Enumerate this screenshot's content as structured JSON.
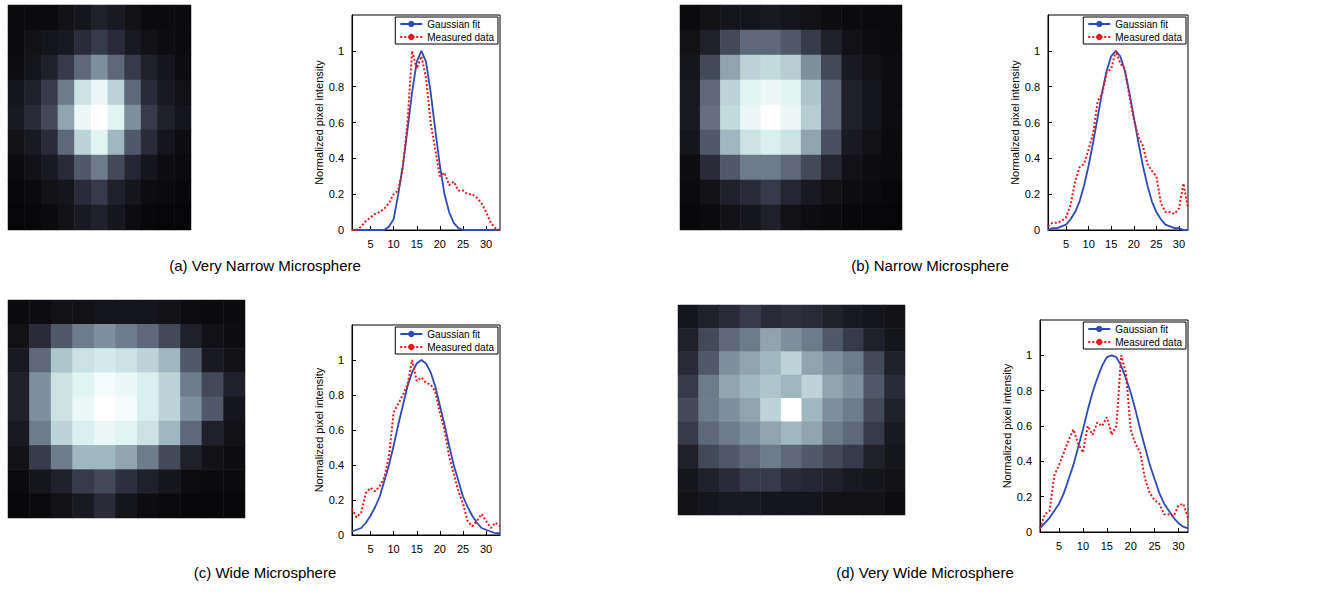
{
  "chart_data": [
    {
      "type": "line",
      "title": "(a) Very Narrow Microsphere",
      "ylabel": "Normalized pixel intensity",
      "x": [
        1,
        2,
        3,
        4,
        5,
        6,
        7,
        8,
        9,
        10,
        11,
        12,
        13,
        14,
        15,
        16,
        17,
        18,
        19,
        20,
        21,
        22,
        23,
        24,
        25,
        26,
        27,
        28,
        29,
        30,
        31,
        32,
        33
      ],
      "series": [
        {
          "name": "Gaussian fit",
          "color": "#2e4bb5",
          "line_style": "solid",
          "values": [
            0,
            0,
            0,
            0,
            0,
            0,
            0,
            0,
            0.02,
            0.06,
            0.2,
            0.36,
            0.56,
            0.77,
            0.94,
            1.0,
            0.94,
            0.77,
            0.56,
            0.36,
            0.2,
            0.1,
            0.04,
            0.01,
            0,
            0,
            0,
            0,
            0,
            0,
            0,
            0,
            0
          ]
        },
        {
          "name": "Measured data",
          "color": "#e41a1c",
          "line_style": "dotted",
          "values": [
            0,
            0,
            0.02,
            0.05,
            0.07,
            0.09,
            0.1,
            0.12,
            0.15,
            0.2,
            0.22,
            0.35,
            0.6,
            1.0,
            0.9,
            0.97,
            0.85,
            0.6,
            0.45,
            0.3,
            0.32,
            0.25,
            0.27,
            0.22,
            0.22,
            0.2,
            0.2,
            0.18,
            0.15,
            0.1,
            0.04,
            0.01,
            0
          ]
        }
      ],
      "xlim": [
        1,
        33
      ],
      "xticks": [
        5,
        10,
        15,
        20,
        25,
        30
      ],
      "ylim": [
        0,
        1.2
      ],
      "yticks": [
        0,
        0.2,
        0.4,
        0.6,
        0.8,
        1
      ],
      "grid": false,
      "legend": "upper right",
      "image": {
        "clim": [
          0,
          1
        ],
        "cells": [
          [
            0.05,
            0.05,
            0.05,
            0.08,
            0.1,
            0.15,
            0.12,
            0.08,
            0.05,
            0.05,
            0.05
          ],
          [
            0.05,
            0.08,
            0.1,
            0.12,
            0.2,
            0.25,
            0.2,
            0.12,
            0.08,
            0.06,
            0.05
          ],
          [
            0.06,
            0.1,
            0.15,
            0.25,
            0.4,
            0.5,
            0.4,
            0.25,
            0.15,
            0.1,
            0.06
          ],
          [
            0.1,
            0.15,
            0.25,
            0.45,
            0.75,
            0.9,
            0.7,
            0.4,
            0.2,
            0.12,
            0.08
          ],
          [
            0.12,
            0.2,
            0.3,
            0.55,
            0.9,
            1.0,
            0.85,
            0.5,
            0.25,
            0.15,
            0.1
          ],
          [
            0.08,
            0.12,
            0.2,
            0.4,
            0.7,
            0.85,
            0.6,
            0.35,
            0.2,
            0.1,
            0.06
          ],
          [
            0.05,
            0.08,
            0.12,
            0.2,
            0.35,
            0.45,
            0.3,
            0.18,
            0.1,
            0.06,
            0.05
          ],
          [
            0.04,
            0.05,
            0.08,
            0.1,
            0.2,
            0.25,
            0.15,
            0.1,
            0.06,
            0.05,
            0.04
          ],
          [
            0.03,
            0.04,
            0.05,
            0.08,
            0.12,
            0.15,
            0.1,
            0.06,
            0.04,
            0.03,
            0.03
          ]
        ]
      }
    },
    {
      "type": "line",
      "title": "(b) Narrow Microsphere",
      "ylabel": "Normalized pixel intensity",
      "x": [
        1,
        2,
        3,
        4,
        5,
        6,
        7,
        8,
        9,
        10,
        11,
        12,
        13,
        14,
        15,
        16,
        17,
        18,
        19,
        20,
        21,
        22,
        23,
        24,
        25,
        26,
        27,
        28,
        29,
        30,
        31,
        32
      ],
      "series": [
        {
          "name": "Gaussian fit",
          "color": "#2e4bb5",
          "line_style": "solid",
          "values": [
            0,
            0.01,
            0.01,
            0.02,
            0.03,
            0.06,
            0.1,
            0.16,
            0.25,
            0.36,
            0.49,
            0.63,
            0.77,
            0.89,
            0.97,
            1.0,
            0.97,
            0.89,
            0.77,
            0.63,
            0.49,
            0.36,
            0.25,
            0.16,
            0.1,
            0.06,
            0.03,
            0.02,
            0.01,
            0.01,
            0,
            0
          ]
        },
        {
          "name": "Measured data",
          "color": "#e41a1c",
          "line_style": "dotted",
          "values": [
            0.02,
            0.04,
            0.04,
            0.05,
            0.07,
            0.14,
            0.27,
            0.35,
            0.37,
            0.45,
            0.54,
            0.72,
            0.76,
            0.88,
            0.9,
            1.0,
            0.93,
            0.9,
            0.75,
            0.62,
            0.52,
            0.47,
            0.37,
            0.33,
            0.3,
            0.15,
            0.1,
            0.1,
            0.09,
            0.12,
            0.26,
            0.12
          ]
        }
      ],
      "xlim": [
        1,
        32
      ],
      "xticks": [
        5,
        10,
        15,
        20,
        25,
        30
      ],
      "ylim": [
        0,
        1.2
      ],
      "yticks": [
        0,
        0.2,
        0.4,
        0.6,
        0.8,
        1
      ],
      "grid": false,
      "legend": "upper right",
      "image": {
        "clim": [
          0,
          1
        ],
        "cells": [
          [
            0.05,
            0.08,
            0.1,
            0.1,
            0.12,
            0.1,
            0.08,
            0.06,
            0.05,
            0.05,
            0.05
          ],
          [
            0.08,
            0.15,
            0.3,
            0.4,
            0.4,
            0.35,
            0.25,
            0.15,
            0.08,
            0.06,
            0.05
          ],
          [
            0.1,
            0.3,
            0.55,
            0.7,
            0.72,
            0.68,
            0.5,
            0.3,
            0.12,
            0.08,
            0.06
          ],
          [
            0.12,
            0.4,
            0.7,
            0.85,
            0.9,
            0.85,
            0.65,
            0.4,
            0.15,
            0.1,
            0.06
          ],
          [
            0.12,
            0.42,
            0.72,
            0.9,
            1.0,
            0.9,
            0.68,
            0.4,
            0.15,
            0.1,
            0.06
          ],
          [
            0.1,
            0.35,
            0.6,
            0.75,
            0.8,
            0.75,
            0.55,
            0.32,
            0.12,
            0.08,
            0.05
          ],
          [
            0.06,
            0.2,
            0.35,
            0.45,
            0.45,
            0.4,
            0.3,
            0.18,
            0.08,
            0.06,
            0.05
          ],
          [
            0.05,
            0.08,
            0.15,
            0.2,
            0.25,
            0.18,
            0.12,
            0.08,
            0.06,
            0.05,
            0.04
          ],
          [
            0.04,
            0.05,
            0.08,
            0.1,
            0.15,
            0.08,
            0.06,
            0.05,
            0.04,
            0.04,
            0.03
          ]
        ]
      }
    },
    {
      "type": "line",
      "title": "(c) Wide Microsphere",
      "ylabel": "Normalized pixel intensity",
      "x": [
        1,
        2,
        3,
        4,
        5,
        6,
        7,
        8,
        9,
        10,
        11,
        12,
        13,
        14,
        15,
        16,
        17,
        18,
        19,
        20,
        21,
        22,
        23,
        24,
        25,
        26,
        27,
        28,
        29,
        30,
        31,
        32,
        33
      ],
      "series": [
        {
          "name": "Gaussian fit",
          "color": "#2e4bb5",
          "line_style": "solid",
          "values": [
            0.02,
            0.03,
            0.04,
            0.07,
            0.11,
            0.16,
            0.22,
            0.31,
            0.4,
            0.51,
            0.63,
            0.74,
            0.85,
            0.93,
            0.98,
            1.0,
            0.98,
            0.93,
            0.85,
            0.74,
            0.63,
            0.51,
            0.4,
            0.31,
            0.22,
            0.16,
            0.11,
            0.07,
            0.04,
            0.03,
            0.02,
            0.01,
            0.01
          ]
        },
        {
          "name": "Measured data",
          "color": "#e41a1c",
          "line_style": "dotted",
          "values": [
            0.15,
            0.1,
            0.13,
            0.24,
            0.27,
            0.25,
            0.28,
            0.33,
            0.45,
            0.7,
            0.75,
            0.8,
            0.86,
            1.0,
            0.88,
            0.9,
            0.87,
            0.86,
            0.82,
            0.7,
            0.6,
            0.45,
            0.35,
            0.25,
            0.18,
            0.08,
            0.05,
            0.08,
            0.12,
            0.08,
            0.04,
            0.07,
            0.05
          ]
        }
      ],
      "xlim": [
        1,
        33
      ],
      "xticks": [
        5,
        10,
        15,
        20,
        25,
        30
      ],
      "ylim": [
        0,
        1.2
      ],
      "yticks": [
        0,
        0.2,
        0.4,
        0.6,
        0.8,
        1
      ],
      "grid": false,
      "legend": "upper right",
      "image": {
        "clim": [
          0,
          1
        ],
        "cells": [
          [
            0.05,
            0.06,
            0.08,
            0.08,
            0.1,
            0.1,
            0.1,
            0.08,
            0.06,
            0.05,
            0.05
          ],
          [
            0.08,
            0.2,
            0.35,
            0.45,
            0.5,
            0.45,
            0.4,
            0.3,
            0.15,
            0.08,
            0.06
          ],
          [
            0.12,
            0.4,
            0.65,
            0.75,
            0.78,
            0.75,
            0.7,
            0.6,
            0.35,
            0.12,
            0.08
          ],
          [
            0.15,
            0.5,
            0.75,
            0.85,
            0.95,
            0.9,
            0.8,
            0.7,
            0.45,
            0.3,
            0.15
          ],
          [
            0.15,
            0.5,
            0.75,
            0.9,
            1.0,
            0.95,
            0.8,
            0.7,
            0.5,
            0.35,
            0.1
          ],
          [
            0.12,
            0.45,
            0.7,
            0.8,
            0.9,
            0.85,
            0.75,
            0.6,
            0.4,
            0.15,
            0.08
          ],
          [
            0.08,
            0.25,
            0.45,
            0.6,
            0.6,
            0.55,
            0.45,
            0.3,
            0.15,
            0.08,
            0.06
          ],
          [
            0.05,
            0.1,
            0.15,
            0.25,
            0.3,
            0.22,
            0.15,
            0.1,
            0.06,
            0.05,
            0.05
          ],
          [
            0.04,
            0.05,
            0.08,
            0.12,
            0.2,
            0.1,
            0.06,
            0.05,
            0.04,
            0.04,
            0.04
          ]
        ]
      }
    },
    {
      "type": "line",
      "title": "(d) Very Wide Microsphere",
      "ylabel": "Normalized pixel intensity",
      "x": [
        1,
        2,
        3,
        4,
        5,
        6,
        7,
        8,
        9,
        10,
        11,
        12,
        13,
        14,
        15,
        16,
        17,
        18,
        19,
        20,
        21,
        22,
        23,
        24,
        25,
        26,
        27,
        28,
        29,
        30,
        31,
        32
      ],
      "series": [
        {
          "name": "Gaussian fit",
          "color": "#2e4bb5",
          "line_style": "solid",
          "values": [
            0.02,
            0.05,
            0.08,
            0.12,
            0.16,
            0.22,
            0.3,
            0.38,
            0.48,
            0.58,
            0.69,
            0.79,
            0.87,
            0.94,
            0.99,
            1.0,
            0.99,
            0.94,
            0.87,
            0.79,
            0.69,
            0.58,
            0.48,
            0.38,
            0.3,
            0.22,
            0.16,
            0.12,
            0.08,
            0.05,
            0.03,
            0.02
          ]
        },
        {
          "name": "Measured data",
          "color": "#e41a1c",
          "line_style": "dotted",
          "values": [
            0.02,
            0.1,
            0.12,
            0.32,
            0.38,
            0.45,
            0.52,
            0.58,
            0.5,
            0.45,
            0.6,
            0.55,
            0.62,
            0.6,
            0.65,
            0.55,
            0.6,
            1.0,
            0.9,
            0.58,
            0.5,
            0.45,
            0.3,
            0.22,
            0.18,
            0.16,
            0.1,
            0.1,
            0.09,
            0.15,
            0.16,
            0.08
          ]
        }
      ],
      "xlim": [
        1,
        32
      ],
      "xticks": [
        5,
        10,
        15,
        20,
        25,
        30
      ],
      "ylim": [
        0,
        1.2
      ],
      "yticks": [
        0,
        0.2,
        0.4,
        0.6,
        0.8,
        1
      ],
      "grid": false,
      "legend": "upper right",
      "image": {
        "clim": [
          0,
          1
        ],
        "cells": [
          [
            0.1,
            0.15,
            0.2,
            0.25,
            0.2,
            0.22,
            0.2,
            0.15,
            0.12,
            0.1,
            0.08
          ],
          [
            0.15,
            0.3,
            0.4,
            0.45,
            0.55,
            0.5,
            0.45,
            0.35,
            0.25,
            0.15,
            0.1
          ],
          [
            0.2,
            0.35,
            0.5,
            0.55,
            0.6,
            0.7,
            0.55,
            0.5,
            0.45,
            0.3,
            0.15
          ],
          [
            0.25,
            0.45,
            0.55,
            0.6,
            0.65,
            0.6,
            0.7,
            0.55,
            0.5,
            0.35,
            0.2
          ],
          [
            0.3,
            0.45,
            0.5,
            0.55,
            0.7,
            1.0,
            0.6,
            0.5,
            0.45,
            0.3,
            0.15
          ],
          [
            0.25,
            0.4,
            0.45,
            0.5,
            0.55,
            0.6,
            0.55,
            0.45,
            0.4,
            0.25,
            0.12
          ],
          [
            0.15,
            0.3,
            0.35,
            0.4,
            0.45,
            0.4,
            0.35,
            0.3,
            0.25,
            0.15,
            0.1
          ],
          [
            0.1,
            0.15,
            0.2,
            0.25,
            0.25,
            0.2,
            0.18,
            0.15,
            0.12,
            0.1,
            0.08
          ],
          [
            0.08,
            0.1,
            0.12,
            0.12,
            0.1,
            0.1,
            0.1,
            0.08,
            0.08,
            0.08,
            0.06
          ]
        ]
      }
    }
  ]
}
